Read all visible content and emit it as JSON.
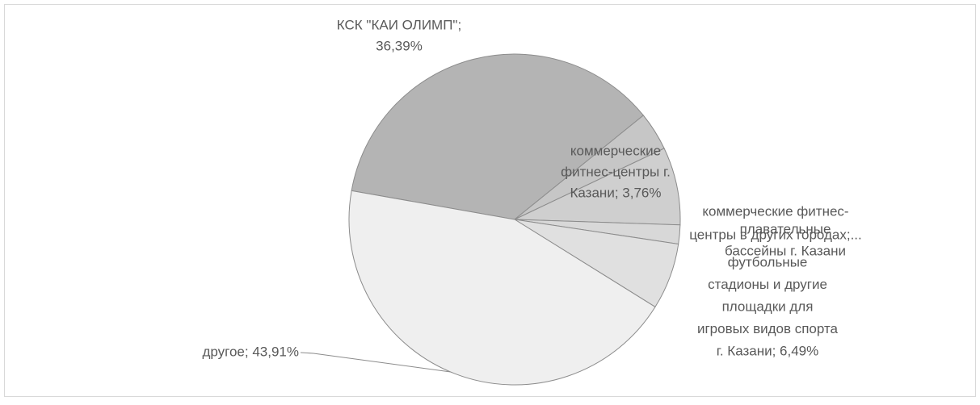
{
  "chart_data": {
    "type": "pie",
    "labels": [
      [
        "КСК \"КАИ ОЛИМП\";",
        "36,39%"
      ],
      [
        "коммерческие",
        "фитнес-центры г.",
        "Казани; 3,76%"
      ],
      [
        "коммерческие фитнес-",
        "центры в других городах;..."
      ],
      [
        "плавательные",
        "бассейны г. Казани"
      ],
      [
        "футбольные",
        "стадионы и другие",
        "площадки для",
        "игровых видов спорта",
        "г. Казани; 6,49%"
      ],
      [
        "другое; 43,91%"
      ]
    ],
    "values": [
      36.39,
      3.76,
      7.6,
      1.85,
      6.49,
      43.91
    ],
    "colors": [
      "#b4b4b4",
      "#c6c6c6",
      "#cfcfcf",
      "#d8d8d8",
      "#e0e0e0",
      "#efefef"
    ],
    "start_angle": 280
  }
}
